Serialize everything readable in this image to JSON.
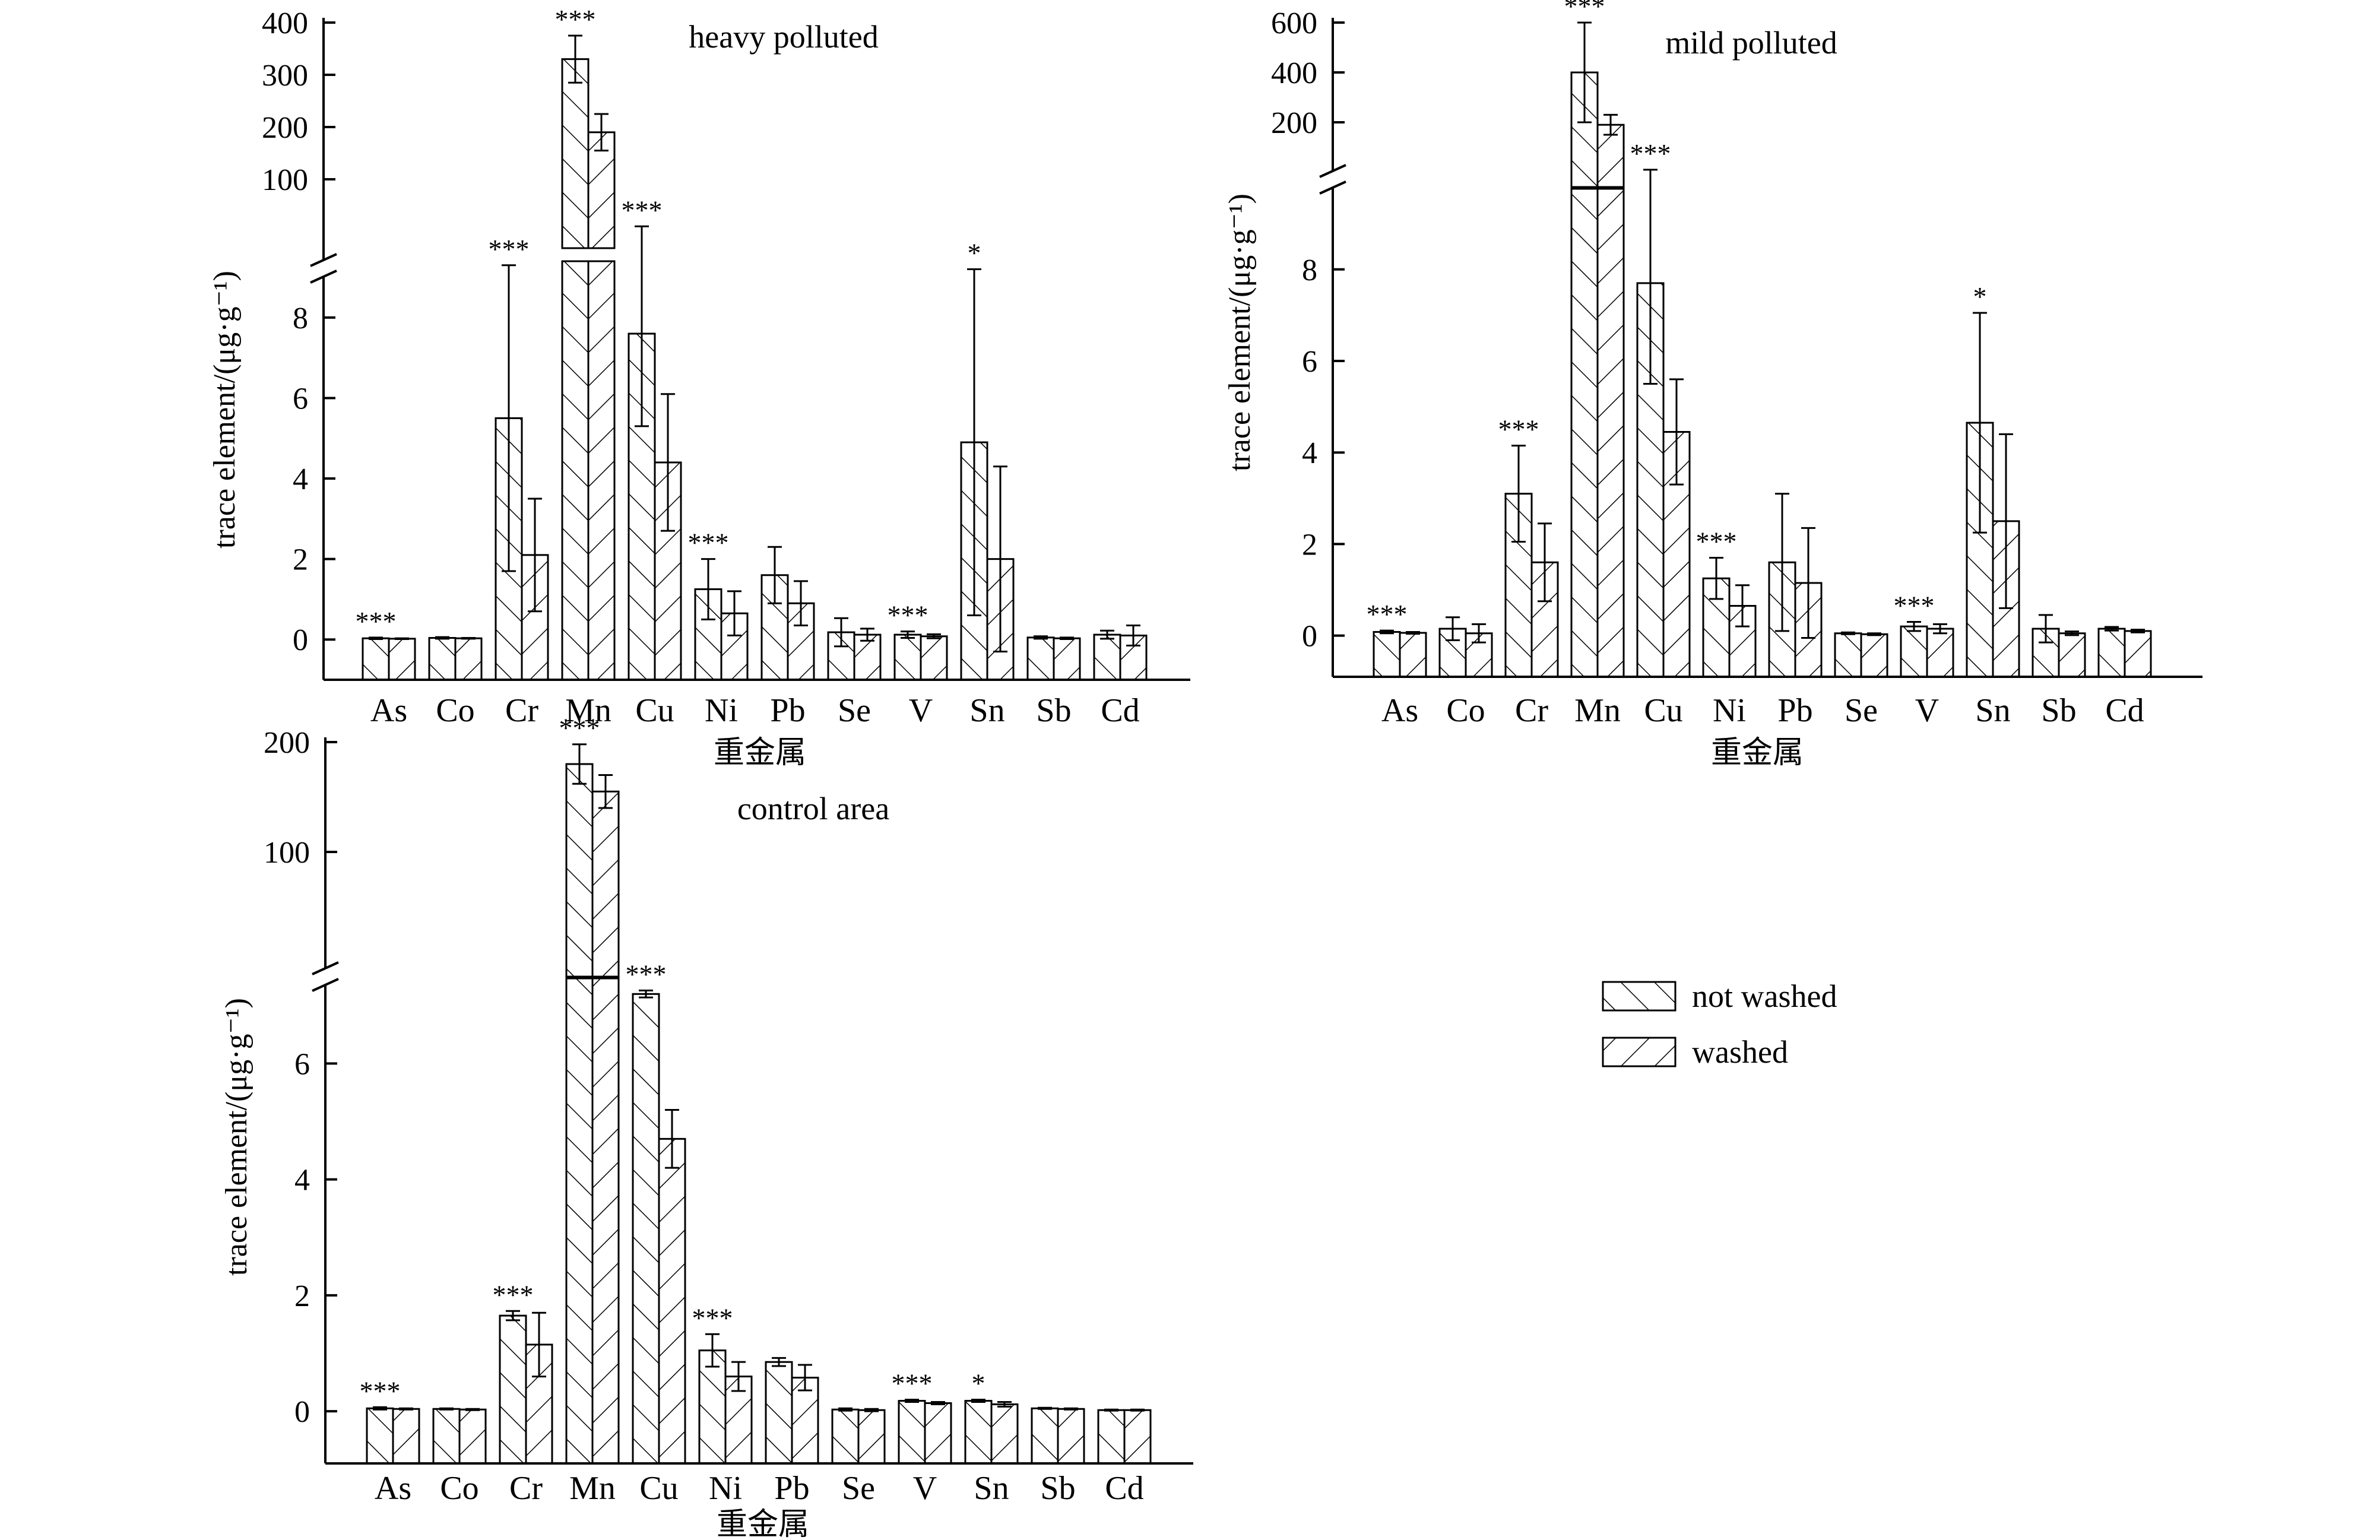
{
  "figure": {
    "legend": {
      "not_washed": "not washed",
      "washed": "washed"
    }
  },
  "chart_data": [
    {
      "type": "bar",
      "title": "heavy polluted",
      "xlabel": "重金属",
      "ylabel": "trace element/(μg·g⁻¹)",
      "categories": [
        "As",
        "Co",
        "Cr",
        "Mn",
        "Cu",
        "Ni",
        "Pb",
        "Se",
        "V",
        "Sn",
        "Sb",
        "Cd"
      ],
      "ylim_lower": [
        -1,
        9.4
      ],
      "ylim_upper": [
        0,
        400
      ],
      "yticks_lower": [
        0,
        2,
        4,
        6,
        8
      ],
      "yticks_upper": [
        100,
        200,
        300,
        400
      ],
      "series": [
        {
          "name": "not washed",
          "values": [
            0.03,
            0.04,
            5.5,
            330,
            7.6,
            1.25,
            1.6,
            0.18,
            0.12,
            4.9,
            0.05,
            0.12
          ],
          "errors": [
            0.02,
            0.02,
            3.8,
            45,
            2.3,
            0.75,
            0.7,
            0.35,
            0.08,
            4.3,
            0.03,
            0.1
          ]
        },
        {
          "name": "washed",
          "values": [
            0.02,
            0.03,
            2.1,
            190,
            4.4,
            0.65,
            0.9,
            0.12,
            0.08,
            2.0,
            0.03,
            0.1
          ],
          "errors": [
            0.01,
            0.01,
            1.4,
            35,
            1.7,
            0.55,
            0.55,
            0.15,
            0.05,
            2.3,
            0.02,
            0.25
          ]
        }
      ],
      "significance": [
        "***",
        "",
        "***",
        "***",
        "***",
        "***",
        "",
        "",
        "***",
        "*",
        "",
        ""
      ]
    },
    {
      "type": "bar",
      "title": "mild polluted",
      "xlabel": "重金属",
      "ylabel": "trace element/(μg·g⁻¹)",
      "categories": [
        "As",
        "Co",
        "Cr",
        "Mn",
        "Cu",
        "Ni",
        "Pb",
        "Se",
        "V",
        "Sn",
        "Sb",
        "Cd"
      ],
      "ylim_lower": [
        -0.9,
        9.8
      ],
      "ylim_upper": [
        0,
        600
      ],
      "yticks_lower": [
        0,
        2,
        4,
        6,
        8
      ],
      "yticks_upper": [
        200,
        400,
        600
      ],
      "series": [
        {
          "name": "not washed",
          "values": [
            0.08,
            0.15,
            3.1,
            400,
            7.7,
            1.25,
            1.6,
            0.05,
            0.2,
            4.65,
            0.15,
            0.15
          ],
          "errors": [
            0.03,
            0.25,
            1.05,
            200,
            2.2,
            0.45,
            1.5,
            0.02,
            0.1,
            2.4,
            0.3,
            0.04
          ]
        },
        {
          "name": "washed",
          "values": [
            0.06,
            0.05,
            1.6,
            190,
            4.45,
            0.65,
            1.15,
            0.03,
            0.15,
            2.5,
            0.05,
            0.1
          ],
          "errors": [
            0.02,
            0.2,
            0.85,
            40,
            1.15,
            0.45,
            1.2,
            0.02,
            0.1,
            1.9,
            0.04,
            0.03
          ]
        }
      ],
      "significance": [
        "***",
        "",
        "***",
        "***",
        "***",
        "***",
        "",
        "",
        "***",
        "*",
        "",
        ""
      ]
    },
    {
      "type": "bar",
      "title": "control area",
      "xlabel": "重金属",
      "ylabel": "trace element/(μg·g⁻¹)",
      "categories": [
        "As",
        "Co",
        "Cr",
        "Mn",
        "Cu",
        "Ni",
        "Pb",
        "Se",
        "V",
        "Sn",
        "Sb",
        "Cd"
      ],
      "ylim_lower": [
        -0.9,
        7.5
      ],
      "ylim_upper": [
        0,
        200
      ],
      "yticks_lower": [
        0,
        2,
        4,
        6
      ],
      "yticks_upper": [
        100,
        200
      ],
      "series": [
        {
          "name": "not washed",
          "values": [
            0.05,
            0.04,
            1.65,
            180,
            7.2,
            1.05,
            0.85,
            0.03,
            0.18,
            0.18,
            0.05,
            0.02
          ],
          "errors": [
            0.02,
            0.01,
            0.08,
            18,
            0.06,
            0.28,
            0.07,
            0.02,
            0.02,
            0.02,
            0.01,
            0.01
          ]
        },
        {
          "name": "washed",
          "values": [
            0.04,
            0.03,
            1.15,
            155,
            4.7,
            0.6,
            0.58,
            0.02,
            0.14,
            0.12,
            0.04,
            0.02
          ],
          "errors": [
            0.01,
            0.01,
            0.55,
            15,
            0.5,
            0.25,
            0.22,
            0.02,
            0.02,
            0.04,
            0.01,
            0.01
          ]
        }
      ],
      "significance": [
        "***",
        "",
        "***",
        "***",
        "***",
        "***",
        "",
        "",
        "***",
        "*",
        "",
        ""
      ]
    }
  ]
}
